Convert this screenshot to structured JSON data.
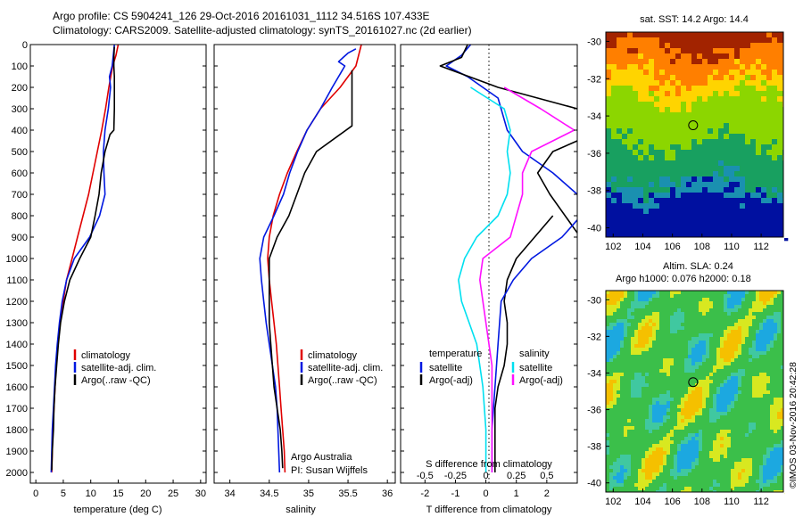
{
  "header": {
    "line1": "Argo profile: CS 5904241_126 29-Oct-2016 20161031_1112 34.516S 107.433E",
    "line2": "Climatology: CARS2009. Satellite-adjusted climatology: synTS_20161027.nc (2d earlier)"
  },
  "colors": {
    "climatology": "#e00000",
    "satellite": "#0018e0",
    "argo": "#000000",
    "sat_salinity": "#00e0f0",
    "argo_salinity": "#ff10ff"
  },
  "chart_data": [
    {
      "type": "line",
      "id": "temperature",
      "xlabel": "temperature (deg C)",
      "ylabel": "",
      "xlim": [
        -1,
        31
      ],
      "ylim": [
        2050,
        0
      ],
      "xticks": [
        "0",
        "5",
        "10",
        "15",
        "20",
        "25",
        "30"
      ],
      "yticks": [
        "0",
        "100",
        "200",
        "300",
        "400",
        "500",
        "600",
        "700",
        "800",
        "900",
        "1000",
        "1100",
        "1200",
        "1300",
        "1400",
        "1500",
        "1600",
        "1700",
        "1800",
        "1900",
        "2000"
      ],
      "legend": [
        "climatology",
        "satellite-adj. clim.",
        "Argo(..raw -QC)"
      ],
      "series": [
        {
          "name": "climatology",
          "color": "climatology",
          "points": [
            [
              15,
              0
            ],
            [
              14.6,
              50
            ],
            [
              14,
              100
            ],
            [
              13.3,
              200
            ],
            [
              12.7,
              300
            ],
            [
              12,
              400
            ],
            [
              11.2,
              500
            ],
            [
              10.4,
              600
            ],
            [
              9.6,
              700
            ],
            [
              8.6,
              800
            ],
            [
              7.6,
              900
            ],
            [
              6.6,
              1000
            ],
            [
              5.6,
              1100
            ],
            [
              5,
              1200
            ],
            [
              4.4,
              1300
            ],
            [
              4,
              1400
            ],
            [
              3.7,
              1500
            ],
            [
              3.5,
              1600
            ],
            [
              3.3,
              1700
            ],
            [
              3.1,
              1800
            ],
            [
              3,
              1900
            ],
            [
              2.9,
              2000
            ]
          ]
        },
        {
          "name": "satellite-adj. clim.",
          "color": "satellite",
          "points": [
            [
              14.3,
              0
            ],
            [
              14.1,
              50
            ],
            [
              13.9,
              100
            ],
            [
              13.4,
              150
            ],
            [
              13.6,
              200
            ],
            [
              13.2,
              300
            ],
            [
              12.6,
              400
            ],
            [
              12.3,
              500
            ],
            [
              12.4,
              600
            ],
            [
              12.6,
              700
            ],
            [
              11.6,
              800
            ],
            [
              9.8,
              900
            ],
            [
              7,
              1000
            ],
            [
              5.6,
              1100
            ],
            [
              4.8,
              1200
            ],
            [
              4.3,
              1300
            ],
            [
              3.9,
              1400
            ],
            [
              3.6,
              1500
            ],
            [
              3.4,
              1600
            ],
            [
              3.2,
              1700
            ],
            [
              3,
              1800
            ],
            [
              2.9,
              1900
            ],
            [
              2.8,
              2000
            ]
          ]
        },
        {
          "name": "Argo(..raw -QC)",
          "color": "argo",
          "points": [
            [
              14.3,
              10
            ],
            [
              14.2,
              60
            ],
            [
              14.2,
              100
            ],
            [
              14.3,
              150
            ],
            [
              14.3,
              200
            ],
            [
              14.3,
              250
            ],
            [
              14.3,
              300
            ],
            [
              14.2,
              400
            ],
            [
              13.5,
              420
            ],
            [
              12.6,
              500
            ],
            [
              11.9,
              600
            ],
            [
              11.5,
              700
            ],
            [
              10.8,
              800
            ],
            [
              10,
              900
            ],
            [
              8,
              1000
            ],
            [
              6.2,
              1100
            ],
            [
              5.2,
              1200
            ],
            [
              4.5,
              1300
            ],
            [
              4.1,
              1400
            ],
            [
              3.8,
              1500
            ],
            [
              3.5,
              1600
            ],
            [
              3.3,
              1700
            ],
            [
              3.2,
              1800
            ],
            [
              3,
              1900
            ],
            [
              2.9,
              1990
            ]
          ]
        }
      ]
    },
    {
      "type": "line",
      "id": "salinity",
      "xlabel": "salinity",
      "ylabel": "",
      "xlim": [
        33.8,
        36.1
      ],
      "ylim": [
        2050,
        0
      ],
      "xticks": [
        "34",
        "34.5",
        "35",
        "35.5",
        "36"
      ],
      "legend": [
        "climatology",
        "satellite-adj. clim.",
        "Argo(..raw -QC)"
      ],
      "annotation": [
        "Argo Australia",
        "PI: Susan Wijffels"
      ],
      "series": [
        {
          "name": "climatology",
          "color": "climatology",
          "points": [
            [
              35.67,
              0
            ],
            [
              35.6,
              100
            ],
            [
              35.4,
              200
            ],
            [
              35.15,
              300
            ],
            [
              34.98,
              400
            ],
            [
              34.85,
              500
            ],
            [
              34.73,
              600
            ],
            [
              34.63,
              700
            ],
            [
              34.55,
              800
            ],
            [
              34.5,
              900
            ],
            [
              34.48,
              1000
            ],
            [
              34.5,
              1100
            ],
            [
              34.53,
              1200
            ],
            [
              34.56,
              1300
            ],
            [
              34.59,
              1400
            ],
            [
              34.61,
              1500
            ],
            [
              34.63,
              1600
            ],
            [
              34.65,
              1700
            ],
            [
              34.67,
              1800
            ],
            [
              34.69,
              1900
            ],
            [
              34.7,
              2000
            ]
          ]
        },
        {
          "name": "satellite-adj. clim.",
          "color": "satellite",
          "points": [
            [
              35.6,
              20
            ],
            [
              35.5,
              40
            ],
            [
              35.44,
              60
            ],
            [
              35.38,
              80
            ],
            [
              35.46,
              100
            ],
            [
              35.3,
              200
            ],
            [
              35.15,
              300
            ],
            [
              34.98,
              400
            ],
            [
              34.86,
              500
            ],
            [
              34.76,
              600
            ],
            [
              34.68,
              700
            ],
            [
              34.56,
              800
            ],
            [
              34.43,
              900
            ],
            [
              34.38,
              1000
            ],
            [
              34.4,
              1100
            ],
            [
              34.43,
              1200
            ],
            [
              34.46,
              1300
            ],
            [
              34.5,
              1400
            ],
            [
              34.54,
              1500
            ],
            [
              34.58,
              1600
            ],
            [
              34.6,
              1700
            ],
            [
              34.61,
              1800
            ],
            [
              34.62,
              1900
            ],
            [
              34.63,
              2000
            ]
          ]
        },
        {
          "name": "Argo(..raw -QC)",
          "color": "argo",
          "points": [
            [
              35.55,
              120
            ],
            [
              35.55,
              200
            ],
            [
              35.55,
              300
            ],
            [
              35.55,
              380
            ],
            [
              35.4,
              420
            ],
            [
              35.1,
              500
            ],
            [
              34.95,
              600
            ],
            [
              34.85,
              700
            ],
            [
              34.75,
              800
            ],
            [
              34.6,
              900
            ],
            [
              34.5,
              1000
            ],
            [
              34.5,
              1100
            ],
            [
              34.5,
              1200
            ],
            [
              34.5,
              1300
            ],
            [
              34.52,
              1400
            ],
            [
              34.54,
              1500
            ],
            [
              34.56,
              1600
            ],
            [
              34.6,
              1700
            ],
            [
              34.64,
              1800
            ],
            [
              34.66,
              1900
            ],
            [
              34.67,
              1980
            ]
          ]
        }
      ]
    },
    {
      "type": "line",
      "id": "difference",
      "xlabel": "T difference from climatology",
      "xlabel_top": "S difference from climatology",
      "ylabel": "",
      "xlim": [
        -2.8,
        3
      ],
      "ylim": [
        2050,
        0
      ],
      "xticks": [
        "-2",
        "-1",
        "0",
        "1",
        "2"
      ],
      "xticks_top": [
        "-0.5",
        "-0.25",
        "0",
        "0.25",
        "0.5"
      ],
      "legend_left_title": "temperature",
      "legend_right_title": "salinity",
      "legend_left": [
        "satellite",
        "Argo(-adj)"
      ],
      "legend_right": [
        "satellite",
        "Argo(-adj)"
      ],
      "series": [
        {
          "name": "satellite",
          "color": "satellite",
          "points": [
            [
              -0.5,
              0
            ],
            [
              -0.8,
              50
            ],
            [
              -1.3,
              100
            ],
            [
              -0.6,
              150
            ],
            [
              0.4,
              250
            ],
            [
              0.7,
              400
            ],
            [
              1.2,
              500
            ],
            [
              2.2,
              600
            ],
            [
              3,
              700
            ]
          ]
        },
        {
          "name": "Argo(-adj)",
          "color": "argo",
          "points": [
            [
              -0.6,
              0
            ],
            [
              -0.8,
              60
            ],
            [
              -1.5,
              100
            ],
            [
              0.4,
              200
            ],
            [
              3,
              300
            ]
          ]
        },
        {
          "name": "Argo(-adj)",
          "color": "argo",
          "points": [
            [
              3,
              450
            ],
            [
              2.2,
              500
            ],
            [
              1.7,
              600
            ],
            [
              2.1,
              700
            ],
            [
              3,
              880
            ]
          ]
        },
        {
          "name": "Argo(-adj)",
          "color": "argo",
          "points": [
            [
              2.2,
              800
            ],
            [
              1.6,
              900
            ],
            [
              1,
              1000
            ],
            [
              0.7,
              1100
            ],
            [
              0.6,
              1200
            ],
            [
              0.7,
              1300
            ],
            [
              0.7,
              1400
            ],
            [
              0.6,
              1500
            ],
            [
              0.4,
              1600
            ],
            [
              0.3,
              1700
            ],
            [
              0.3,
              1800
            ],
            [
              0.3,
              1900
            ],
            [
              0.3,
              2000
            ]
          ]
        },
        {
          "name": "satellite",
          "color": "satellite",
          "points": [
            [
              3,
              820
            ],
            [
              2.5,
              900
            ],
            [
              1.5,
              1000
            ],
            [
              0.9,
              1100
            ],
            [
              0.5,
              1200
            ],
            [
              0.4,
              1400
            ],
            [
              0.3,
              1600
            ],
            [
              0.2,
              1800
            ],
            [
              0.2,
              2000
            ]
          ]
        },
        {
          "name": "satellite",
          "color": "sat_salinity",
          "points": [
            [
              -0.5,
              200
            ],
            [
              0.6,
              300
            ],
            [
              0.8,
              400
            ],
            [
              0.7,
              500
            ],
            [
              0.8,
              600
            ],
            [
              0.7,
              700
            ],
            [
              0.4,
              800
            ],
            [
              -0.3,
              900
            ],
            [
              -0.7,
              1000
            ],
            [
              -0.9,
              1100
            ],
            [
              -0.8,
              1200
            ],
            [
              -0.3,
              1400
            ],
            [
              -0.1,
              1600
            ],
            [
              0,
              1800
            ],
            [
              0,
              2000
            ]
          ]
        },
        {
          "name": "Argo(-adj)",
          "color": "argo_salinity",
          "points": [
            [
              0.6,
              200
            ],
            [
              1.8,
              300
            ],
            [
              2.9,
              400
            ],
            [
              2.2,
              450
            ],
            [
              1.5,
              500
            ],
            [
              1.2,
              600
            ],
            [
              1.2,
              700
            ],
            [
              1,
              800
            ],
            [
              0.8,
              900
            ],
            [
              -0.1,
              1000
            ],
            [
              -0.2,
              1100
            ],
            [
              0,
              1300
            ],
            [
              0.2,
              1500
            ],
            [
              0.2,
              1700
            ],
            [
              0.2,
              1900
            ],
            [
              0.2,
              2000
            ]
          ]
        }
      ]
    },
    {
      "type": "heatmap",
      "id": "sst_map",
      "title": "sat. SST: 14.2  Argo: 14.4",
      "xlim": [
        101.5,
        113.5
      ],
      "ylim": [
        -40.5,
        -29.5
      ],
      "xticks": [
        "102",
        "104",
        "106",
        "108",
        "110",
        "112"
      ],
      "yticks": [
        "-30",
        "-32",
        "-34",
        "-36",
        "-38",
        "-40"
      ],
      "marker": [
        107.4,
        -34.5
      ],
      "colors": [
        "#a22300",
        "#ff7f00",
        "#ffd400",
        "#8cd600",
        "#18a060",
        "#1a90b0",
        "#0010a0"
      ]
    },
    {
      "type": "heatmap",
      "id": "sla_map",
      "title": "Altim. SLA: 0.24",
      "subtitle": "Argo h1000: 0.076 h2000: 0.18",
      "xlim": [
        101.5,
        113.5
      ],
      "ylim": [
        -40.5,
        -29.5
      ],
      "xticks": [
        "102",
        "104",
        "106",
        "108",
        "110",
        "112"
      ],
      "yticks": [
        "-30",
        "-32",
        "-34",
        "-36",
        "-38",
        "-40"
      ],
      "marker": [
        107.4,
        -34.5
      ],
      "colors": [
        "#3bbf4a",
        "#4ccc35",
        "#d8e820",
        "#f5c000",
        "#1ca8e0",
        "#40c8a0"
      ]
    }
  ],
  "credit": "©IMOS 03-Nov-2016 20:42:28"
}
